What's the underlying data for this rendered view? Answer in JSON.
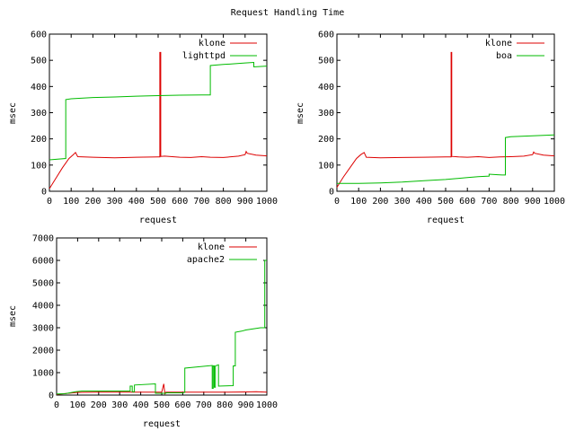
{
  "figure": {
    "title": "Request Handling Time"
  },
  "colors": {
    "frame": "#000000",
    "klone": "#dd0000",
    "other": "#00bb00"
  },
  "chart_data": [
    {
      "type": "line",
      "title": "",
      "xlabel": "request",
      "ylabel": "msec",
      "xlim": [
        0,
        1000
      ],
      "ylim": [
        0,
        600
      ],
      "xticks": [
        0,
        100,
        200,
        300,
        400,
        500,
        600,
        700,
        800,
        900,
        1000
      ],
      "yticks": [
        0,
        100,
        200,
        300,
        400,
        500,
        600
      ],
      "legend_position": "top-right",
      "series": [
        {
          "name": "klone",
          "color": "#dd0000",
          "x": [
            0,
            30,
            60,
            90,
            110,
            120,
            130,
            200,
            300,
            400,
            500,
            508,
            508,
            512,
            512,
            530,
            600,
            650,
            700,
            740,
            800,
            870,
            900,
            905,
            910,
            950,
            1000
          ],
          "y": [
            10,
            50,
            90,
            125,
            140,
            148,
            132,
            130,
            128,
            130,
            131,
            131,
            530,
            530,
            133,
            134,
            130,
            129,
            132,
            130,
            129,
            134,
            140,
            152,
            145,
            138,
            135
          ]
        },
        {
          "name": "lighttpd",
          "color": "#00bb00",
          "x": [
            0,
            75,
            75,
            100,
            200,
            300,
            400,
            500,
            600,
            700,
            740,
            740,
            800,
            850,
            900,
            940,
            940,
            1000
          ],
          "y": [
            120,
            125,
            350,
            353,
            358,
            360,
            363,
            365,
            367,
            368,
            368,
            480,
            484,
            487,
            490,
            492,
            475,
            478
          ]
        }
      ]
    },
    {
      "type": "line",
      "title": "",
      "xlabel": "request",
      "ylabel": "msec",
      "xlim": [
        0,
        1000
      ],
      "ylim": [
        0,
        600
      ],
      "xticks": [
        0,
        100,
        200,
        300,
        400,
        500,
        600,
        700,
        800,
        900,
        1000
      ],
      "yticks": [
        0,
        100,
        200,
        300,
        400,
        500,
        600
      ],
      "legend_position": "top-right",
      "series": [
        {
          "name": "klone",
          "color": "#dd0000",
          "x": [
            0,
            30,
            60,
            90,
            110,
            125,
            135,
            200,
            300,
            400,
            500,
            525,
            525,
            528,
            528,
            560,
            600,
            650,
            700,
            750,
            800,
            860,
            900,
            905,
            910,
            950,
            1000
          ],
          "y": [
            15,
            55,
            90,
            125,
            140,
            148,
            130,
            128,
            129,
            130,
            131,
            131,
            530,
            530,
            133,
            131,
            130,
            132,
            129,
            131,
            132,
            134,
            140,
            150,
            145,
            138,
            135
          ]
        },
        {
          "name": "boa",
          "color": "#00bb00",
          "x": [
            0,
            100,
            200,
            300,
            400,
            500,
            600,
            650,
            700,
            700,
            740,
            760,
            775,
            775,
            800,
            900,
            1000
          ],
          "y": [
            30,
            30,
            32,
            35,
            40,
            45,
            52,
            56,
            58,
            65,
            63,
            62,
            62,
            205,
            208,
            212,
            215
          ]
        }
      ]
    },
    {
      "type": "line",
      "title": "",
      "xlabel": "request",
      "ylabel": "msec",
      "xlim": [
        0,
        1000
      ],
      "ylim": [
        0,
        7000
      ],
      "xticks": [
        0,
        100,
        200,
        300,
        400,
        500,
        600,
        700,
        800,
        900,
        1000
      ],
      "yticks": [
        0,
        1000,
        2000,
        3000,
        4000,
        5000,
        6000,
        7000
      ],
      "legend_position": "top-right",
      "series": [
        {
          "name": "klone",
          "color": "#dd0000",
          "x": [
            0,
            100,
            200,
            300,
            400,
            500,
            510,
            515,
            520,
            600,
            700,
            800,
            900,
            950,
            1000
          ],
          "y": [
            30,
            120,
            130,
            130,
            130,
            130,
            500,
            60,
            130,
            130,
            130,
            130,
            140,
            150,
            130
          ]
        },
        {
          "name": "apache2",
          "color": "#00bb00",
          "x": [
            0,
            40,
            90,
            120,
            200,
            300,
            350,
            350,
            360,
            360,
            370,
            370,
            470,
            470,
            520,
            520,
            600,
            610,
            610,
            740,
            740,
            745,
            745,
            750,
            750,
            755,
            755,
            770,
            770,
            840,
            840,
            850,
            850,
            880,
            900,
            970,
            990,
            990,
            1000
          ],
          "y": [
            50,
            60,
            150,
            180,
            180,
            180,
            180,
            400,
            400,
            150,
            150,
            450,
            500,
            80,
            80,
            100,
            100,
            120,
            1200,
            1320,
            300,
            300,
            1300,
            1300,
            350,
            350,
            1300,
            1350,
            400,
            420,
            1300,
            1300,
            2800,
            2850,
            2900,
            3000,
            3000,
            6000,
            6000
          ]
        }
      ]
    }
  ]
}
